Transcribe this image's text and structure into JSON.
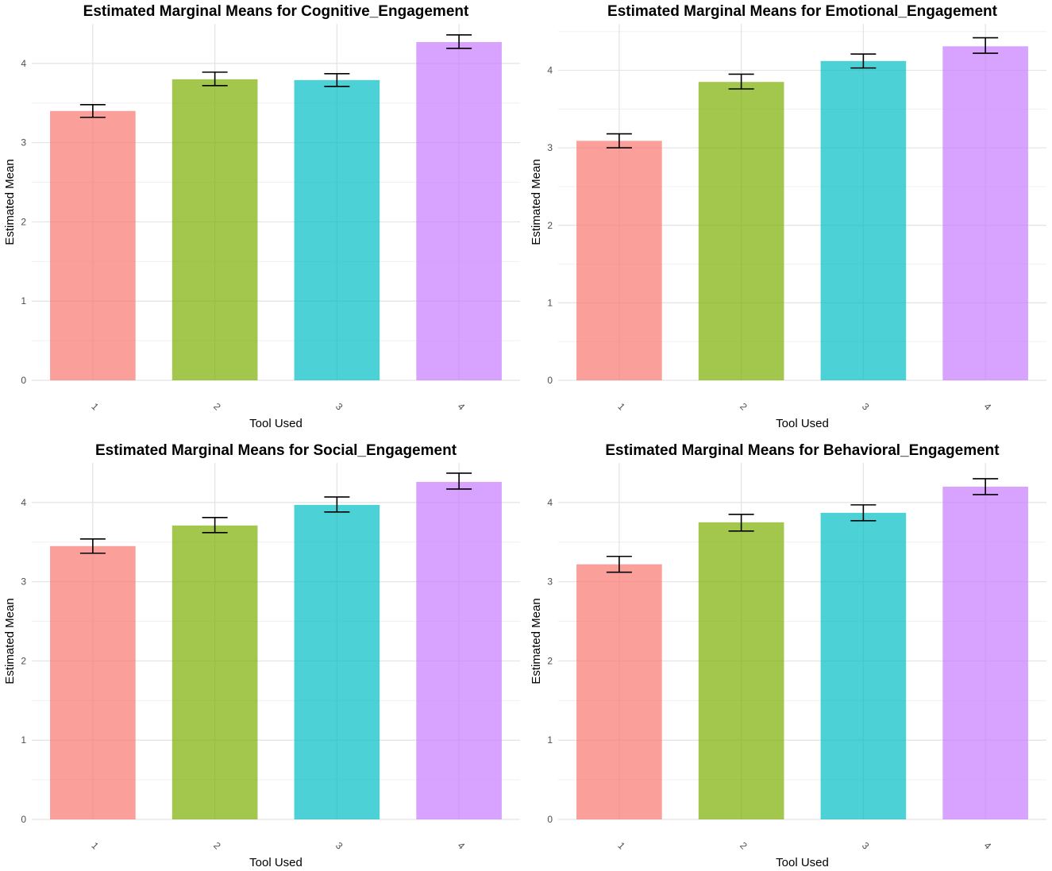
{
  "chart_data": [
    {
      "type": "bar",
      "title": "Estimated Marginal Means for Cognitive_Engagement",
      "xlabel": "Tool Used",
      "ylabel": "Estimated Mean",
      "categories": [
        "1",
        "2",
        "3",
        "4"
      ],
      "values": [
        3.4,
        3.8,
        3.79,
        4.27
      ],
      "error_low": [
        3.32,
        3.72,
        3.71,
        4.19
      ],
      "error_high": [
        3.48,
        3.89,
        3.87,
        4.36
      ],
      "y_ticks": [
        0,
        1,
        2,
        3,
        4
      ],
      "ylim": [
        0,
        4.5
      ],
      "colors": [
        "#F8766D",
        "#7CAE00",
        "#00BFC4",
        "#C77CFF"
      ],
      "grid": true
    },
    {
      "type": "bar",
      "title": "Estimated Marginal Means for Emotional_Engagement",
      "xlabel": "Tool Used",
      "ylabel": "Estimated Mean",
      "categories": [
        "1",
        "2",
        "3",
        "4"
      ],
      "values": [
        3.09,
        3.85,
        4.12,
        4.31
      ],
      "error_low": [
        3.0,
        3.76,
        4.03,
        4.22
      ],
      "error_high": [
        3.18,
        3.95,
        4.21,
        4.42
      ],
      "y_ticks": [
        0,
        1,
        2,
        3,
        4
      ],
      "ylim": [
        0,
        4.6
      ],
      "colors": [
        "#F8766D",
        "#7CAE00",
        "#00BFC4",
        "#C77CFF"
      ],
      "grid": true
    },
    {
      "type": "bar",
      "title": "Estimated Marginal Means for Social_Engagement",
      "xlabel": "Tool Used",
      "ylabel": "Estimated Mean",
      "categories": [
        "1",
        "2",
        "3",
        "4"
      ],
      "values": [
        3.45,
        3.71,
        3.97,
        4.26
      ],
      "error_low": [
        3.36,
        3.62,
        3.88,
        4.17
      ],
      "error_high": [
        3.54,
        3.81,
        4.07,
        4.37
      ],
      "y_ticks": [
        0,
        1,
        2,
        3,
        4
      ],
      "ylim": [
        0,
        4.5
      ],
      "colors": [
        "#F8766D",
        "#7CAE00",
        "#00BFC4",
        "#C77CFF"
      ],
      "grid": true
    },
    {
      "type": "bar",
      "title": "Estimated Marginal Means for Behavioral_Engagement",
      "xlabel": "Tool Used",
      "ylabel": "Estimated Mean",
      "categories": [
        "1",
        "2",
        "3",
        "4"
      ],
      "values": [
        3.22,
        3.75,
        3.87,
        4.2
      ],
      "error_low": [
        3.12,
        3.64,
        3.77,
        4.1
      ],
      "error_high": [
        3.32,
        3.85,
        3.97,
        4.3
      ],
      "y_ticks": [
        0,
        1,
        2,
        3,
        4
      ],
      "ylim": [
        0,
        4.5
      ],
      "colors": [
        "#F8766D",
        "#7CAE00",
        "#00BFC4",
        "#C77CFF"
      ],
      "grid": true
    }
  ]
}
